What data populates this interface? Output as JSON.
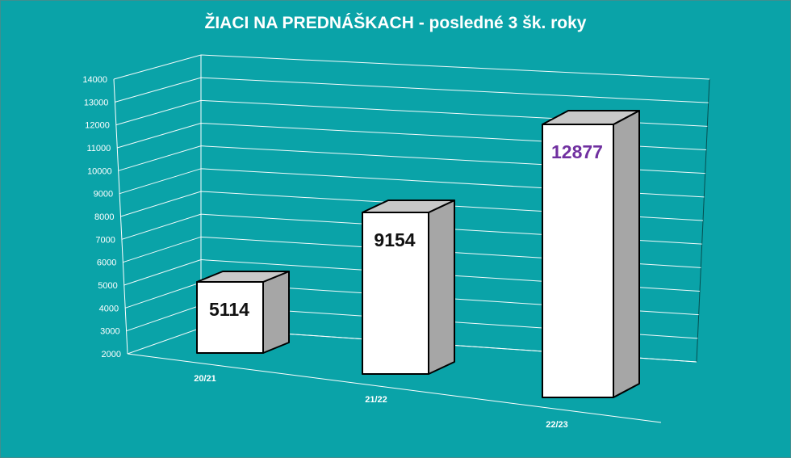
{
  "chart_data": {
    "type": "bar",
    "title": "ŽIACI NA PREDNÁŠKACH - posledné 3 šk. roky",
    "categories": [
      "20/21",
      "21/22",
      "22/23"
    ],
    "values": [
      5114,
      9154,
      12877
    ],
    "data_labels": [
      "5114",
      "9154",
      "12877"
    ],
    "ylim": [
      2000,
      14000
    ],
    "y_ticks": [
      "2000",
      "3000",
      "4000",
      "5000",
      "6000",
      "7000",
      "8000",
      "9000",
      "10000",
      "11000",
      "12000",
      "13000",
      "14000"
    ],
    "grid": true,
    "legend": "none",
    "style": "3d-column"
  },
  "colors": {
    "background": "#0aa3a8",
    "bar_front": "#ffffff",
    "bar_top": "#c8c8c8",
    "bar_side": "#a6a6a6",
    "label_default": "#111111",
    "label_highlight": "#7030a0",
    "grid": "#ffffff"
  }
}
